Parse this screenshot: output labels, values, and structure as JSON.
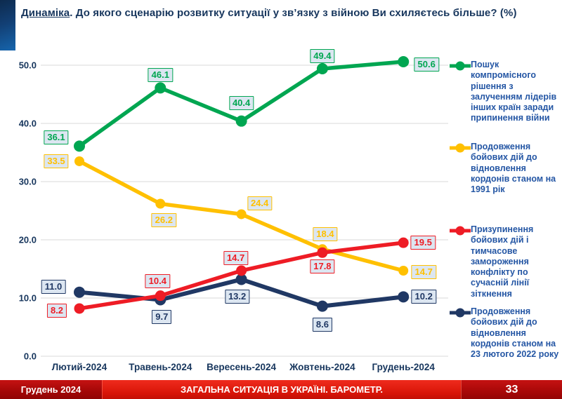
{
  "title": {
    "lead": "Динаміка",
    "rest": ". До якого сценарію розвитку ситуації у зв’язку з війною Ви схиляєтесь більше? (%)"
  },
  "chart_data": {
    "type": "line",
    "categories": [
      "Лютий-2024",
      "Травень-2024",
      "Вересень-2024",
      "Жовтень-2024",
      "Грудень-2024"
    ],
    "y_ticks": [
      "0.0",
      "10.0",
      "20.0",
      "30.0",
      "40.0",
      "50.0"
    ],
    "ylim": [
      0,
      50
    ],
    "grid": "horizontal",
    "legend_position": "right",
    "colors": {
      "label_background": "#dce6f1",
      "axis_text": "#17365d",
      "gridline": "#d9d9d9",
      "legend_text": "#2456a4"
    },
    "series": [
      {
        "name": "Пошук компромісного рішення з залученням лідерів інших країн заради припинення війни",
        "color": "#00a651",
        "values": [
          36.1,
          46.1,
          40.4,
          49.4,
          50.6
        ]
      },
      {
        "name": "Продовження бойових дій до відновлення кордонів станом на 1991 рік",
        "color": "#ffc000",
        "values": [
          33.5,
          26.2,
          24.4,
          18.4,
          14.7
        ]
      },
      {
        "name": "Призупинення бойових дій і тимчасове замороження конфлікту по сучасній лінії зіткнення",
        "color": "#ee1c25",
        "values": [
          8.2,
          10.4,
          14.7,
          17.8,
          19.5
        ]
      },
      {
        "name": "Продовження бойових дій до відновлення кордонів станом на 23 лютого 2022 року",
        "color": "#203864",
        "values": [
          11.0,
          9.7,
          13.2,
          8.6,
          10.2
        ]
      }
    ]
  },
  "footer": {
    "date": "Грудень 2024",
    "title": "ЗАГАЛЬНА СИТУАЦІЯ В УКРАЇНІ. БАРОМЕТР.",
    "page": "33"
  }
}
